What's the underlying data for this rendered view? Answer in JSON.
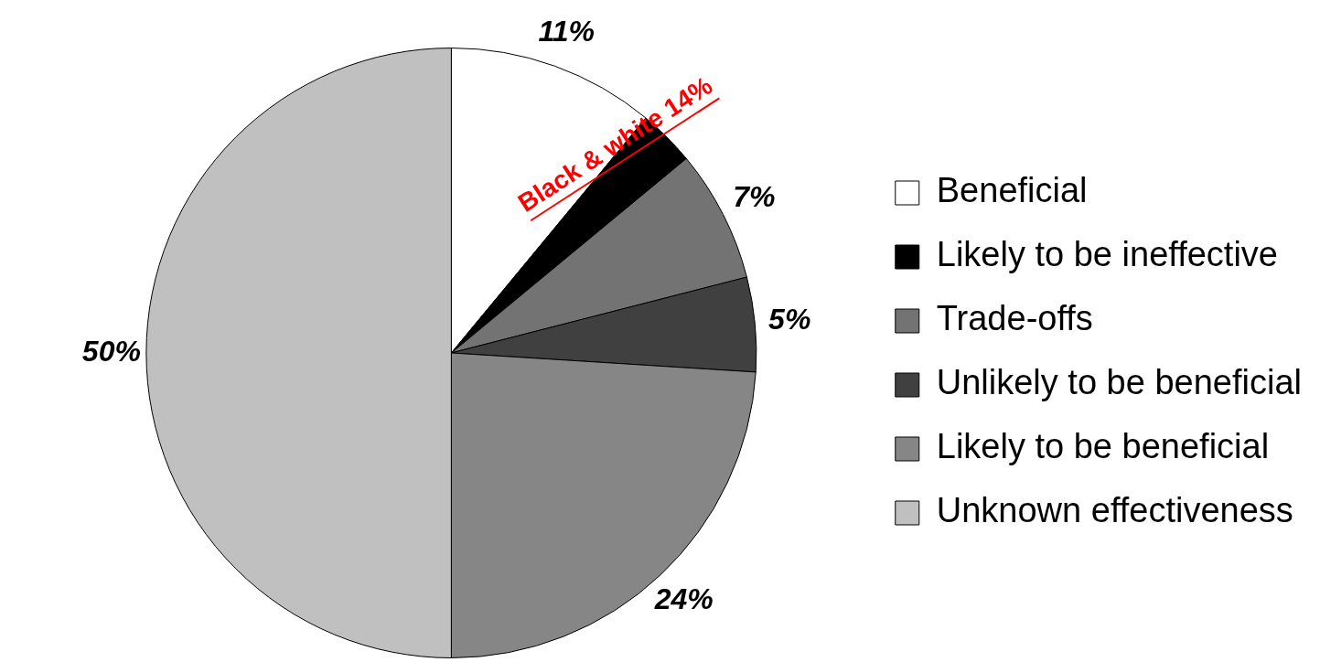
{
  "chart_data": {
    "type": "pie",
    "categories": [
      "Beneficial",
      "Likely to be ineffective",
      "Trade-offs",
      "Unlikely to be beneficial",
      "Likely to be beneficial",
      "Unknown effectiveness"
    ],
    "values": [
      11,
      3,
      7,
      5,
      24,
      50
    ],
    "colors": [
      "#ffffff",
      "#000000",
      "#737373",
      "#404040",
      "#868686",
      "#c0c0c0"
    ],
    "value_labels": [
      "11%",
      null,
      "7%",
      "5%",
      "24%",
      "50%"
    ],
    "legend": "right",
    "annotations": [
      "Black & white 14%"
    ]
  }
}
